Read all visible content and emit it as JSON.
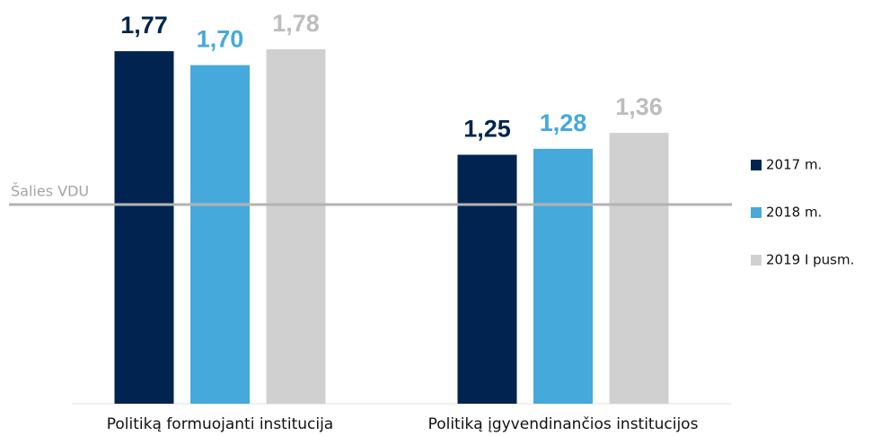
{
  "chart_data": {
    "type": "bar",
    "categories": [
      "Politiką formuojanti institucija",
      "Politiką įgyvendinančios institucijos"
    ],
    "series": [
      {
        "name": "2017 m.",
        "color": "#00244f",
        "values": [
          1.77,
          1.25
        ],
        "value_labels": [
          "1,77",
          "1,25"
        ]
      },
      {
        "name": "2018 m.",
        "color": "#45a9db",
        "values": [
          1.7,
          1.28
        ],
        "value_labels": [
          "1,70",
          "1,28"
        ]
      },
      {
        "name": "2019 I pusm.",
        "color": "#d0d0d0",
        "values": [
          1.78,
          1.36
        ],
        "value_labels": [
          "1,78",
          "1,36"
        ]
      }
    ],
    "reference": {
      "label": "Šalies VDU",
      "value": 1,
      "color": "#b3b3b3"
    },
    "ylim": [
      0,
      2
    ],
    "legend": "right"
  }
}
